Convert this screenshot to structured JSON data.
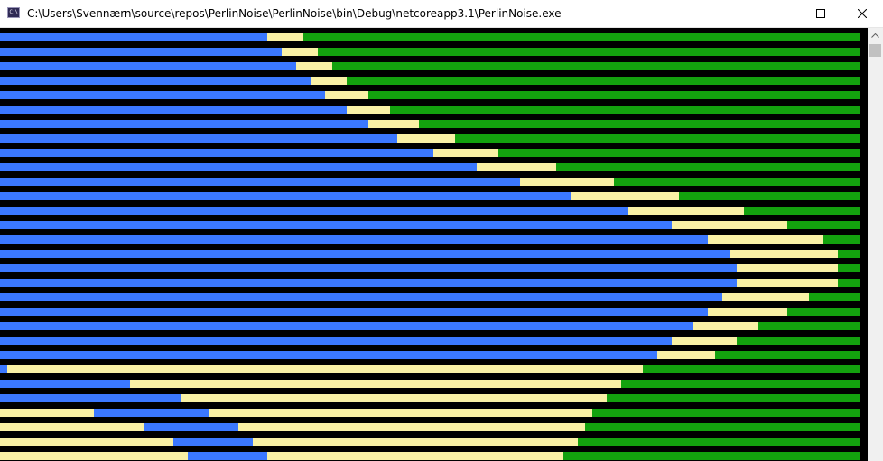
{
  "window": {
    "title": "C:\\Users\\Svennærn\\source\\repos\\PerlinNoise\\PerlinNoise\\bin\\Debug\\netcoreapp3.1\\PerlinNoise.exe",
    "icon": "console-app-icon",
    "icon_text": "C:\\",
    "controls": [
      "minimize-icon",
      "maximize-icon",
      "close-icon"
    ]
  },
  "colors": {
    "background": "#000000",
    "water": "#3b78ff",
    "sand": "#f9f1a5",
    "grass": "#13a10e"
  },
  "console": {
    "columns": 119,
    "terrain_rows": [
      [
        37,
        5,
        77
      ],
      [
        39,
        5,
        75
      ],
      [
        41,
        5,
        73
      ],
      [
        43,
        5,
        71
      ],
      [
        45,
        6,
        68
      ],
      [
        48,
        6,
        65
      ],
      [
        51,
        7,
        61
      ],
      [
        55,
        8,
        56
      ],
      [
        60,
        9,
        50
      ],
      [
        66,
        11,
        42
      ],
      [
        72,
        13,
        34
      ],
      [
        79,
        15,
        25
      ],
      [
        87,
        16,
        16
      ],
      [
        93,
        16,
        10
      ],
      [
        98,
        16,
        5
      ],
      [
        101,
        15,
        3
      ],
      [
        102,
        14,
        3
      ],
      [
        102,
        14,
        3
      ],
      [
        100,
        12,
        7
      ],
      [
        98,
        11,
        10
      ],
      [
        96,
        9,
        14
      ],
      [
        93,
        9,
        17
      ],
      [
        91,
        8,
        20
      ],
      [
        0,
        1,
        88,
        8,
        22
      ],
      [
        0,
        18,
        68,
        7,
        26
      ],
      [
        0,
        25,
        59,
        7,
        28
      ],
      [
        13,
        16,
        53,
        7,
        30
      ],
      [
        20,
        13,
        48,
        7,
        31
      ],
      [
        24,
        11,
        45,
        6,
        33
      ],
      [
        26,
        11,
        41,
        7,
        34
      ]
    ]
  }
}
